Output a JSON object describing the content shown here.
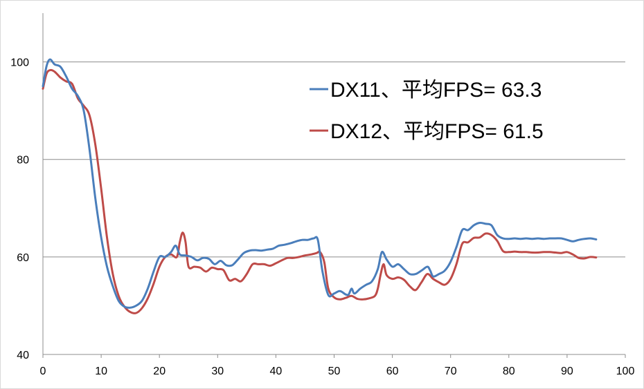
{
  "chart_data": {
    "type": "line",
    "title": "",
    "xlabel": "",
    "ylabel": "",
    "xlim": [
      0,
      100
    ],
    "ylim": [
      40,
      110
    ],
    "xticks": [
      0,
      10,
      20,
      30,
      40,
      50,
      60,
      70,
      80,
      90,
      100
    ],
    "yticks": [
      40,
      60,
      80,
      100
    ],
    "grid": "horizontal",
    "legend_placement": "top-right",
    "series": [
      {
        "name": "DX11、平均FPS= 63.3",
        "color": "#4a7ebb",
        "x": [
          0,
          0.6,
          1.2,
          2,
          3,
          4,
          5,
          6,
          7,
          8,
          9,
          10,
          11,
          12,
          13,
          14,
          15,
          16,
          17,
          18,
          19,
          20,
          21,
          22,
          22.8,
          23.5,
          24.5,
          25.5,
          26.5,
          27.5,
          28.5,
          29.5,
          30.5,
          31.5,
          32.5,
          33.5,
          34.5,
          35.5,
          36.5,
          37.5,
          38.5,
          39.5,
          40.5,
          41.5,
          42.5,
          43.5,
          44.5,
          45.5,
          46.5,
          47.2,
          48,
          49,
          50,
          51,
          52,
          52.5,
          53,
          53.5,
          54.5,
          55.5,
          56.5,
          57.5,
          58.2,
          59,
          60,
          61,
          62,
          63,
          64,
          65,
          66,
          66.5,
          67,
          68,
          69,
          70,
          71,
          72,
          73,
          74,
          75,
          76,
          77,
          78,
          79,
          80,
          81,
          82,
          83,
          84,
          85,
          86,
          87,
          88,
          89,
          90,
          91,
          92,
          93,
          94,
          95
        ],
        "y": [
          95,
          99,
          100.5,
          99.5,
          99,
          97,
          94.5,
          93,
          90,
          82,
          72,
          64,
          58,
          54,
          51,
          49.8,
          49.6,
          50,
          51,
          53.5,
          57,
          60,
          60,
          61,
          62.3,
          60.5,
          60.3,
          60,
          59.3,
          59.8,
          59.6,
          58.5,
          59.2,
          58.3,
          58.3,
          59.5,
          60.8,
          61.3,
          61.4,
          61.3,
          61.5,
          61.7,
          62.3,
          62.5,
          62.8,
          63.2,
          63.5,
          63.5,
          63.8,
          63.5,
          57,
          52.2,
          52.5,
          53,
          52.3,
          52.3,
          53.5,
          52.5,
          53.5,
          54.3,
          55,
          57.5,
          61,
          59.5,
          58,
          58.5,
          57.5,
          56.5,
          56.5,
          57.2,
          58,
          57.2,
          56,
          56.5,
          57.2,
          59,
          62,
          65.5,
          65.5,
          66.5,
          67,
          66.8,
          66.5,
          64.5,
          63.8,
          63.7,
          63.8,
          63.7,
          63.8,
          63.7,
          63.8,
          63.7,
          63.8,
          63.8,
          63.8,
          63.5,
          63.2,
          63.5,
          63.7,
          63.8,
          63.6
        ]
      },
      {
        "name": "DX12、平均FPS= 61.5",
        "color": "#be4b48",
        "x": [
          0,
          0.6,
          1.2,
          2,
          3,
          4,
          5,
          6,
          7,
          8,
          9,
          10,
          11,
          12,
          13,
          14,
          15,
          16,
          17,
          18,
          19,
          20,
          21,
          22,
          23,
          23.5,
          24,
          24.5,
          25,
          26,
          27,
          28,
          29,
          30,
          31,
          32,
          33,
          34,
          35,
          36,
          37,
          38,
          39,
          40,
          41,
          42,
          43,
          44,
          45,
          46,
          47,
          47.6,
          48.3,
          49,
          50,
          51,
          52,
          53,
          54,
          55,
          56,
          57,
          57.5,
          58,
          58.5,
          59,
          60,
          61,
          62,
          63,
          64,
          65,
          66,
          67,
          68,
          69,
          70,
          71,
          72,
          73,
          74,
          75,
          76,
          77,
          78,
          79,
          80,
          81,
          82,
          83,
          84,
          85,
          86,
          87,
          88,
          89,
          90,
          91,
          92,
          93,
          94,
          95
        ],
        "y": [
          94.5,
          97.5,
          98.3,
          98,
          96.8,
          96,
          95.5,
          92.5,
          91,
          89,
          83,
          74,
          64,
          56.5,
          52,
          49.8,
          48.7,
          48.5,
          49.5,
          51.5,
          54.5,
          58,
          60,
          60.5,
          60,
          63,
          65,
          63,
          58,
          58,
          57.8,
          57,
          57.8,
          57.5,
          57.3,
          55.2,
          55.5,
          55,
          56.5,
          58.5,
          58.5,
          58.5,
          58.2,
          58.7,
          59.3,
          59.8,
          59.8,
          60,
          60.3,
          60.5,
          60.8,
          61,
          59,
          53.5,
          51.7,
          51.3,
          51.6,
          52,
          51.4,
          51.3,
          51.5,
          52,
          53.5,
          56.5,
          58.5,
          56.3,
          55.5,
          55.8,
          55.3,
          54,
          53.2,
          54.8,
          56.5,
          55.5,
          54.8,
          54.3,
          55.5,
          58.5,
          62.7,
          63,
          63.9,
          64,
          64.8,
          64.5,
          63.3,
          61.2,
          61,
          61.1,
          61,
          61,
          60.9,
          60.9,
          61,
          61,
          60.9,
          60.8,
          61,
          60.5,
          59.8,
          59.7,
          60,
          59.9
        ]
      }
    ]
  }
}
